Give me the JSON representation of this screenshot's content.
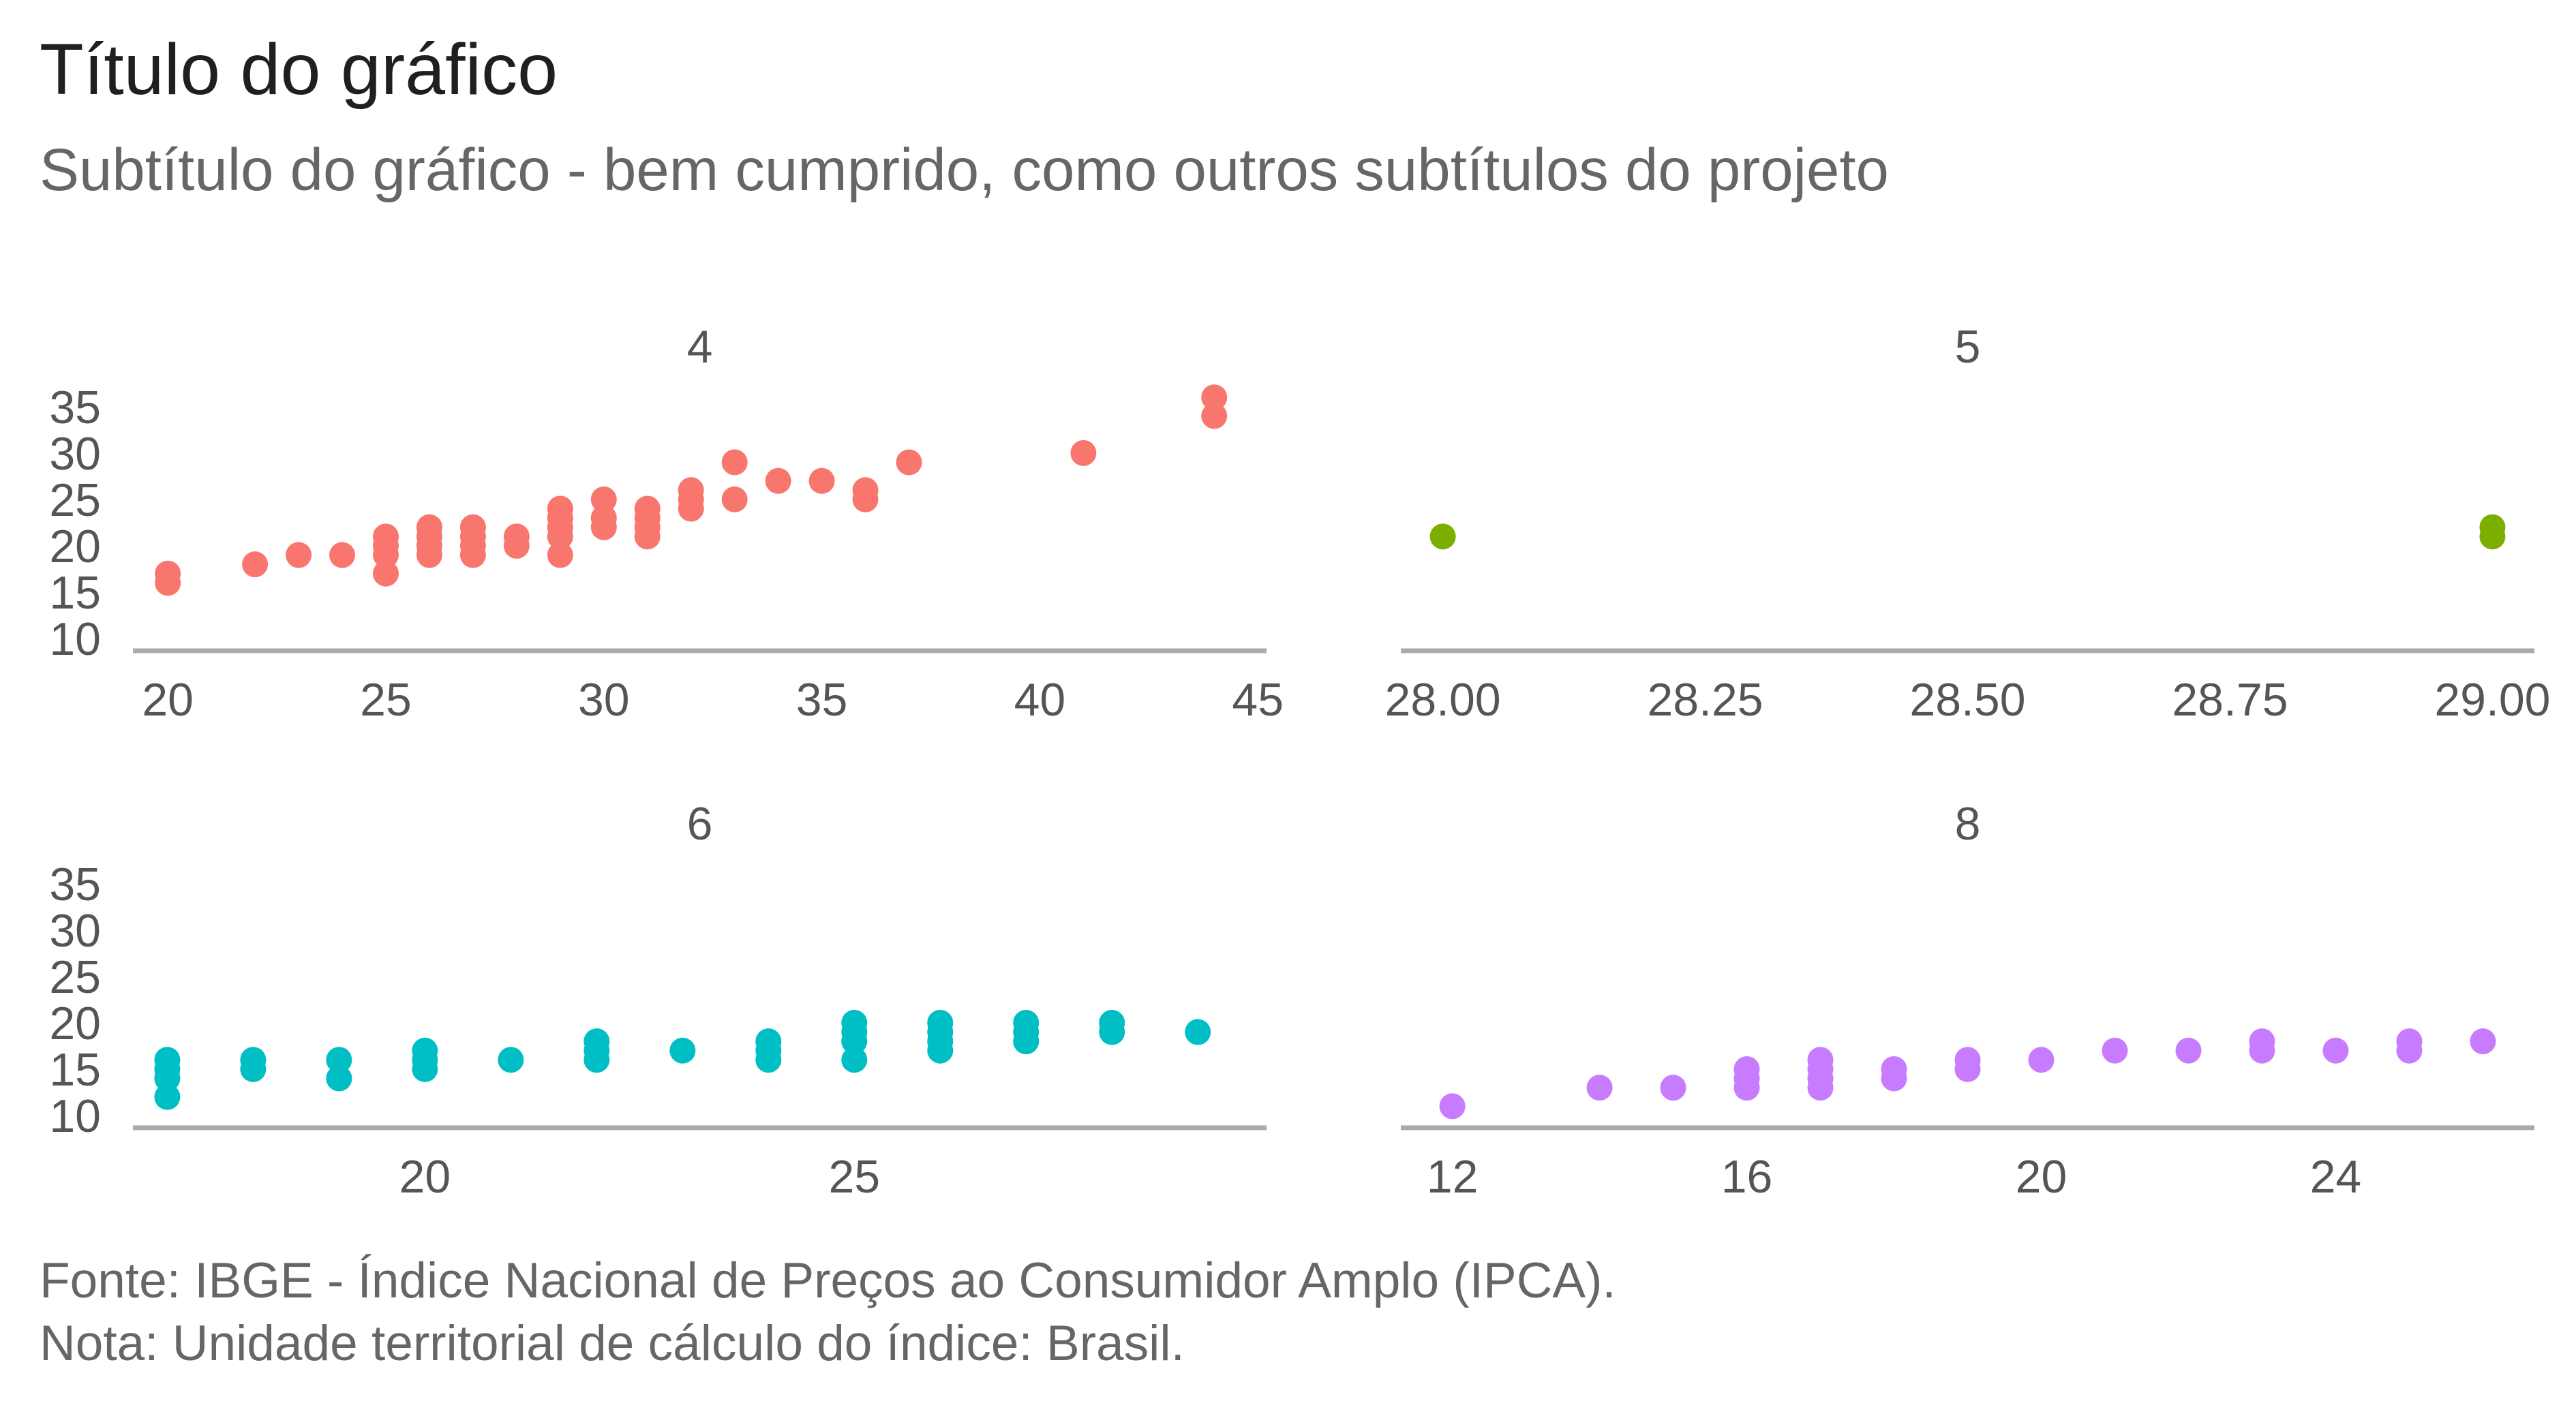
{
  "title": "Título do gráfico",
  "subtitle": "Subtítulo do gráfico - bem cumprido, como outros subtítulos do projeto",
  "caption": {
    "source": "Fonte: IBGE - Índice Nacional de Preços ao Consumidor Amplo (IPCA).",
    "note": "Nota: Unidade territorial de cálculo do índice: Brasil."
  },
  "chart_data": {
    "type": "scatter",
    "facet_layout": "2x2 grid, shared y axis",
    "grid": false,
    "legend": "none",
    "ylim": [
      10,
      35.5
    ],
    "y_ticks": [
      "10",
      "15",
      "20",
      "25",
      "30",
      "35"
    ],
    "panels": [
      {
        "label": "4",
        "color": "#F8766D",
        "xlim": [
          19.2,
          45.2
        ],
        "x_ticks": [
          "20",
          "25",
          "30",
          "35",
          "40",
          "45"
        ],
        "x_tick_values": [
          20,
          25,
          30,
          35,
          40,
          45
        ],
        "points": [
          [
            20,
            17
          ],
          [
            20,
            16
          ],
          [
            22,
            18
          ],
          [
            23,
            19
          ],
          [
            24,
            19
          ],
          [
            25,
            21
          ],
          [
            25,
            20
          ],
          [
            25,
            19
          ],
          [
            25,
            17
          ],
          [
            26,
            22
          ],
          [
            26,
            21
          ],
          [
            26,
            20
          ],
          [
            26,
            19
          ],
          [
            27,
            22
          ],
          [
            27,
            21
          ],
          [
            27,
            20
          ],
          [
            27,
            19
          ],
          [
            28,
            21
          ],
          [
            28,
            20
          ],
          [
            29,
            24
          ],
          [
            29,
            23
          ],
          [
            29,
            22
          ],
          [
            29,
            21
          ],
          [
            29,
            19
          ],
          [
            30,
            25
          ],
          [
            30,
            23
          ],
          [
            30,
            22
          ],
          [
            31,
            24
          ],
          [
            31,
            23
          ],
          [
            31,
            22
          ],
          [
            31,
            21
          ],
          [
            32,
            26
          ],
          [
            32,
            25
          ],
          [
            32,
            24
          ],
          [
            33,
            29
          ],
          [
            33,
            25
          ],
          [
            34,
            27
          ],
          [
            35,
            27
          ],
          [
            36,
            26
          ],
          [
            36,
            25
          ],
          [
            37,
            29
          ],
          [
            41,
            30
          ],
          [
            44,
            36
          ],
          [
            44,
            34
          ]
        ]
      },
      {
        "label": "5",
        "color": "#7CAE00",
        "xlim": [
          27.96,
          29.04
        ],
        "x_ticks": [
          "28.00",
          "28.25",
          "28.50",
          "28.75",
          "29.00"
        ],
        "x_tick_values": [
          28,
          28.25,
          28.5,
          28.75,
          29
        ],
        "points": [
          [
            28,
            21
          ],
          [
            29,
            22
          ],
          [
            29,
            21
          ]
        ]
      },
      {
        "label": "6",
        "color": "#00BFC4",
        "xlim": [
          16.6,
          29.8
        ],
        "x_ticks": [
          "20",
          "25"
        ],
        "x_tick_values": [
          20,
          25
        ],
        "points": [
          [
            17,
            16
          ],
          [
            17,
            15
          ],
          [
            17,
            14
          ],
          [
            17,
            12
          ],
          [
            18,
            16
          ],
          [
            18,
            15
          ],
          [
            19,
            16
          ],
          [
            19,
            14
          ],
          [
            20,
            17
          ],
          [
            20,
            16
          ],
          [
            20,
            15
          ],
          [
            21,
            16
          ],
          [
            22,
            18
          ],
          [
            22,
            17
          ],
          [
            22,
            16
          ],
          [
            23,
            17
          ],
          [
            24,
            18
          ],
          [
            24,
            17
          ],
          [
            24,
            16
          ],
          [
            25,
            20
          ],
          [
            25,
            19
          ],
          [
            25,
            18
          ],
          [
            25,
            16
          ],
          [
            26,
            20
          ],
          [
            26,
            19
          ],
          [
            26,
            18
          ],
          [
            26,
            17
          ],
          [
            27,
            20
          ],
          [
            27,
            19
          ],
          [
            27,
            18
          ],
          [
            28,
            20
          ],
          [
            28,
            19
          ],
          [
            29,
            19
          ]
        ]
      },
      {
        "label": "8",
        "color": "#C77CFF",
        "xlim": [
          11.3,
          26.7
        ],
        "x_ticks": [
          "12",
          "16",
          "20",
          "24"
        ],
        "x_tick_values": [
          12,
          16,
          20,
          24
        ],
        "points": [
          [
            12,
            11
          ],
          [
            14,
            13
          ],
          [
            15,
            13
          ],
          [
            16,
            15
          ],
          [
            16,
            14
          ],
          [
            16,
            13
          ],
          [
            17,
            16
          ],
          [
            17,
            15
          ],
          [
            17,
            14
          ],
          [
            17,
            13
          ],
          [
            18,
            15
          ],
          [
            18,
            14
          ],
          [
            19,
            16
          ],
          [
            19,
            15
          ],
          [
            20,
            16
          ],
          [
            21,
            17
          ],
          [
            22,
            17
          ],
          [
            23,
            18
          ],
          [
            23,
            17
          ],
          [
            24,
            17
          ],
          [
            25,
            18
          ],
          [
            25,
            17
          ],
          [
            26,
            18
          ]
        ]
      }
    ]
  }
}
